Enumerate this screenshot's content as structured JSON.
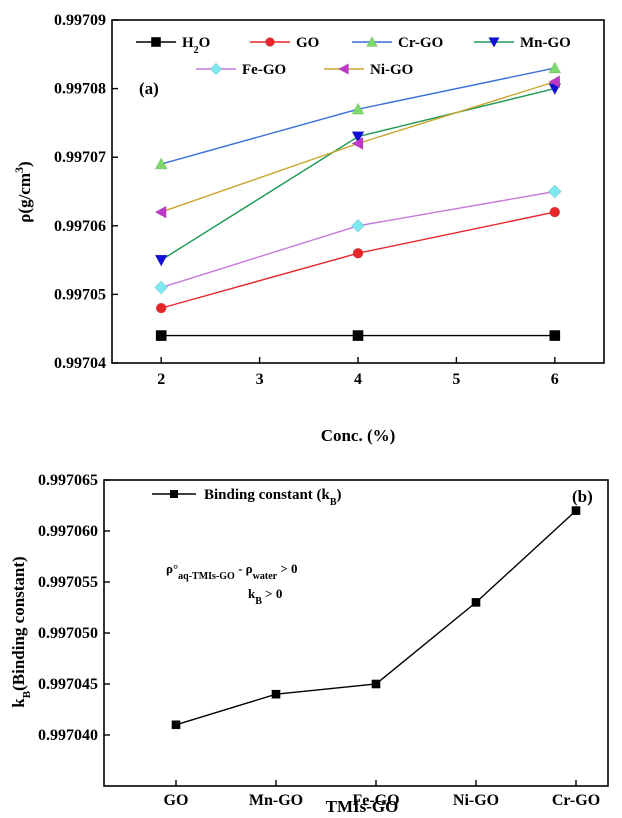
{
  "chart_data": [
    {
      "type": "line",
      "panel_label": "(a)",
      "title": "",
      "xlabel": "Conc. (%)",
      "ylabel_base": "ρ(g/cm",
      "ylabel_sup": "3",
      "ylabel_close": ")",
      "x": [
        2,
        4,
        6
      ],
      "xlim": [
        1.5,
        6.5
      ],
      "ylim": [
        0.99704,
        0.99709
      ],
      "xticks": [
        "2",
        "3",
        "4",
        "5",
        "6"
      ],
      "yticks": [
        "0.99704",
        "0.99705",
        "0.99706",
        "0.99707",
        "0.99708",
        "0.99709"
      ],
      "legend": "top, 2 rows",
      "series": [
        {
          "name": "H2O",
          "label_base": "H",
          "label_sub": "2",
          "label_rest": "O",
          "values": [
            0.997044,
            0.997044,
            0.997044
          ],
          "line_color": "#000000",
          "marker_color": "#000000",
          "marker": "square"
        },
        {
          "name": "GO",
          "values": [
            0.997048,
            0.997056,
            0.997062
          ],
          "line_color": "#e8262a",
          "marker_color": "#e8262a",
          "marker": "circle"
        },
        {
          "name": "Cr-GO",
          "values": [
            0.997069,
            0.997077,
            0.997083
          ],
          "line_color": "#3a6fd8",
          "marker_color": "#7cd96a",
          "marker": "triangle-up"
        },
        {
          "name": "Mn-GO",
          "values": [
            0.997055,
            0.997073,
            0.99708
          ],
          "line_color": "#1f9a55",
          "marker_color": "#1010d8",
          "marker": "triangle-down"
        },
        {
          "name": "Fe-GO",
          "values": [
            0.997051,
            0.99706,
            0.997065
          ],
          "line_color": "#c77ad8",
          "marker_color": "#7de8f0",
          "marker": "diamond"
        },
        {
          "name": "Ni-GO",
          "values": [
            0.997062,
            0.997072,
            0.997081
          ],
          "line_color": "#c9a52e",
          "marker_color": "#c038c8",
          "marker": "triangle-left"
        }
      ]
    },
    {
      "type": "line",
      "panel_label": "(b)",
      "title": "",
      "xlabel": "TMIs-GO",
      "ylabel_base": "k",
      "ylabel_sub": "B",
      "ylabel_rest": "(Binding constant)",
      "categories": [
        "GO",
        "Mn-GO",
        "Fe-GO",
        "Ni-GO",
        "Cr-GO"
      ],
      "ylim": [
        0.997035,
        0.997065
      ],
      "yticks": [
        "0.997040",
        "0.997045",
        "0.997050",
        "0.997055",
        "0.997060",
        "0.997065"
      ],
      "legend": "top-left",
      "series": [
        {
          "name": "Binding constant (kB)",
          "label_base": "Binding constant (k",
          "label_sub": "B",
          "label_rest": ")",
          "values": [
            0.997041,
            0.997044,
            0.997045,
            0.997053,
            0.997062
          ],
          "color": "#000000",
          "marker": "square"
        }
      ],
      "annotations": {
        "line1": {
          "rho": "ρ°",
          "sub1": "aq-TMIs-GO",
          "minus": " - ",
          "rho2": "ρ",
          "sub2": "water",
          "rest": " > 0"
        },
        "line2": {
          "base": "k",
          "sub": "B",
          "rest": " > 0"
        }
      }
    }
  ]
}
